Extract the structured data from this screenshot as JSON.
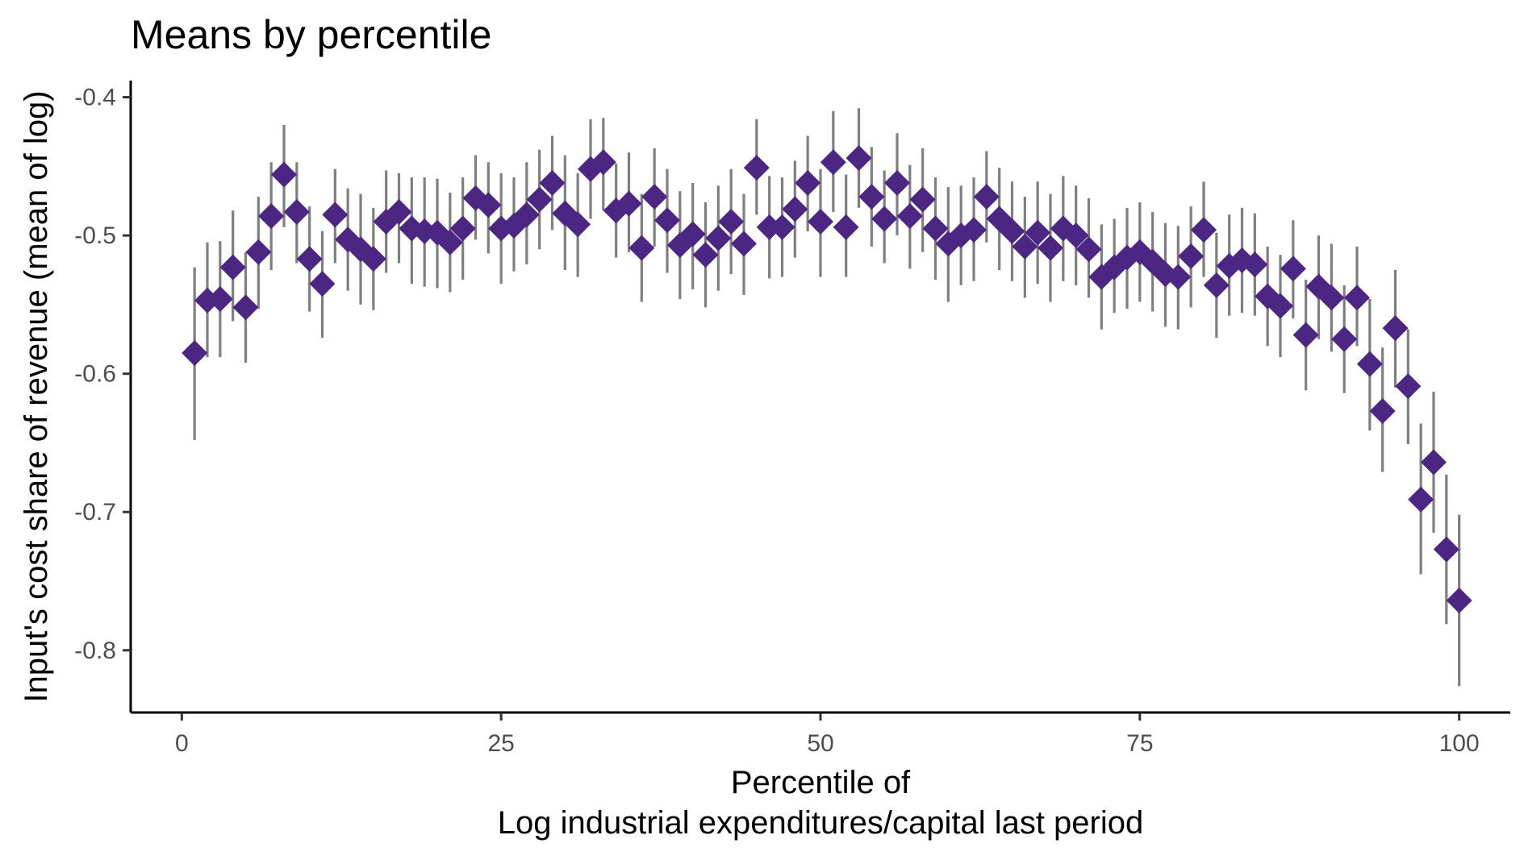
{
  "chart_data": {
    "type": "scatter",
    "title": "Means by percentile",
    "xlabel": "Percentile of",
    "xlabel_line2": "Log industrial expenditures/capital last period",
    "ylabel": "Input's cost share of revenue (mean of log)",
    "xlim": [
      -4,
      104
    ],
    "ylim": [
      -0.845,
      -0.388
    ],
    "x_ticks": [
      0,
      25,
      50,
      75,
      100
    ],
    "x_tick_labels": [
      "0",
      "25",
      "50",
      "75",
      "100"
    ],
    "y_ticks": [
      -0.8,
      -0.7,
      -0.6,
      -0.5,
      -0.4
    ],
    "y_tick_labels": [
      "-0.8",
      "-0.7",
      "-0.6",
      "-0.5",
      "-0.4"
    ],
    "grid": false,
    "legend": "none",
    "point_color": "#4B2683",
    "errorbar_color": "#7F7F7F",
    "marker": "diamond",
    "series": [
      {
        "x": [
          1,
          2,
          3,
          4,
          5,
          6,
          7,
          8,
          9,
          10,
          11,
          12,
          13,
          14,
          15,
          16,
          17,
          18,
          19,
          20,
          21,
          22,
          23,
          24,
          25,
          26,
          27,
          28,
          29,
          30,
          31,
          32,
          33,
          34,
          35,
          36,
          37,
          38,
          39,
          40,
          41,
          42,
          43,
          44,
          45,
          46,
          47,
          48,
          49,
          50,
          51,
          52,
          53,
          54,
          55,
          56,
          57,
          58,
          59,
          60,
          61,
          62,
          63,
          64,
          65,
          66,
          67,
          68,
          69,
          70,
          71,
          72,
          73,
          74,
          75,
          76,
          77,
          78,
          79,
          80,
          81,
          82,
          83,
          84,
          85,
          86,
          87,
          88,
          89,
          90,
          91,
          92,
          93,
          94,
          95,
          96,
          97,
          98,
          99,
          100
        ],
        "y": [
          -0.585,
          -0.547,
          -0.546,
          -0.523,
          -0.552,
          -0.512,
          -0.486,
          -0.456,
          -0.483,
          -0.517,
          -0.535,
          -0.485,
          -0.503,
          -0.51,
          -0.517,
          -0.49,
          -0.483,
          -0.495,
          -0.497,
          -0.498,
          -0.505,
          -0.495,
          -0.473,
          -0.478,
          -0.495,
          -0.493,
          -0.485,
          -0.474,
          -0.462,
          -0.484,
          -0.492,
          -0.452,
          -0.447,
          -0.482,
          -0.477,
          -0.509,
          -0.472,
          -0.489,
          -0.507,
          -0.499,
          -0.514,
          -0.502,
          -0.49,
          -0.506,
          -0.451,
          -0.494,
          -0.494,
          -0.481,
          -0.462,
          -0.49,
          -0.447,
          -0.494,
          -0.444,
          -0.472,
          -0.488,
          -0.462,
          -0.486,
          -0.474,
          -0.495,
          -0.506,
          -0.5,
          -0.496,
          -0.472,
          -0.488,
          -0.497,
          -0.508,
          -0.498,
          -0.509,
          -0.495,
          -0.5,
          -0.51,
          -0.53,
          -0.523,
          -0.516,
          -0.512,
          -0.519,
          -0.528,
          -0.53,
          -0.515,
          -0.496,
          -0.536,
          -0.522,
          -0.518,
          -0.521,
          -0.544,
          -0.551,
          -0.524,
          -0.572,
          -0.537,
          -0.545,
          -0.575,
          -0.545,
          -0.593,
          -0.627,
          -0.567,
          -0.609,
          -0.691,
          -0.664,
          -0.727,
          -0.764
        ],
        "ymin": [
          -0.648,
          -0.588,
          -0.588,
          -0.562,
          -0.592,
          -0.553,
          -0.525,
          -0.494,
          -0.52,
          -0.555,
          -0.574,
          -0.52,
          -0.54,
          -0.55,
          -0.554,
          -0.527,
          -0.52,
          -0.535,
          -0.537,
          -0.538,
          -0.541,
          -0.532,
          -0.503,
          -0.513,
          -0.535,
          -0.526,
          -0.521,
          -0.51,
          -0.496,
          -0.525,
          -0.53,
          -0.488,
          -0.482,
          -0.516,
          -0.512,
          -0.548,
          -0.508,
          -0.527,
          -0.546,
          -0.539,
          -0.552,
          -0.54,
          -0.528,
          -0.543,
          -0.485,
          -0.531,
          -0.53,
          -0.516,
          -0.497,
          -0.53,
          -0.483,
          -0.53,
          -0.48,
          -0.508,
          -0.52,
          -0.5,
          -0.524,
          -0.512,
          -0.532,
          -0.548,
          -0.536,
          -0.533,
          -0.505,
          -0.525,
          -0.533,
          -0.545,
          -0.535,
          -0.548,
          -0.533,
          -0.536,
          -0.545,
          -0.568,
          -0.556,
          -0.553,
          -0.548,
          -0.555,
          -0.566,
          -0.568,
          -0.552,
          -0.53,
          -0.574,
          -0.558,
          -0.556,
          -0.558,
          -0.58,
          -0.588,
          -0.56,
          -0.612,
          -0.575,
          -0.584,
          -0.614,
          -0.58,
          -0.641,
          -0.671,
          -0.61,
          -0.651,
          -0.745,
          -0.715,
          -0.781,
          -0.826
        ],
        "ymax": [
          -0.523,
          -0.505,
          -0.504,
          -0.482,
          -0.512,
          -0.472,
          -0.447,
          -0.42,
          -0.447,
          -0.479,
          -0.497,
          -0.452,
          -0.466,
          -0.47,
          -0.48,
          -0.453,
          -0.455,
          -0.458,
          -0.458,
          -0.459,
          -0.469,
          -0.458,
          -0.442,
          -0.447,
          -0.455,
          -0.458,
          -0.447,
          -0.438,
          -0.428,
          -0.442,
          -0.455,
          -0.416,
          -0.415,
          -0.448,
          -0.44,
          -0.47,
          -0.437,
          -0.452,
          -0.468,
          -0.462,
          -0.476,
          -0.464,
          -0.452,
          -0.47,
          -0.416,
          -0.457,
          -0.458,
          -0.446,
          -0.428,
          -0.452,
          -0.41,
          -0.456,
          -0.408,
          -0.436,
          -0.453,
          -0.426,
          -0.449,
          -0.437,
          -0.458,
          -0.465,
          -0.464,
          -0.458,
          -0.439,
          -0.451,
          -0.461,
          -0.472,
          -0.461,
          -0.47,
          -0.457,
          -0.464,
          -0.473,
          -0.492,
          -0.488,
          -0.48,
          -0.476,
          -0.483,
          -0.491,
          -0.493,
          -0.479,
          -0.461,
          -0.498,
          -0.485,
          -0.48,
          -0.484,
          -0.508,
          -0.514,
          -0.489,
          -0.532,
          -0.5,
          -0.506,
          -0.536,
          -0.508,
          -0.546,
          -0.581,
          -0.525,
          -0.568,
          -0.636,
          -0.613,
          -0.673,
          -0.702
        ]
      }
    ]
  }
}
